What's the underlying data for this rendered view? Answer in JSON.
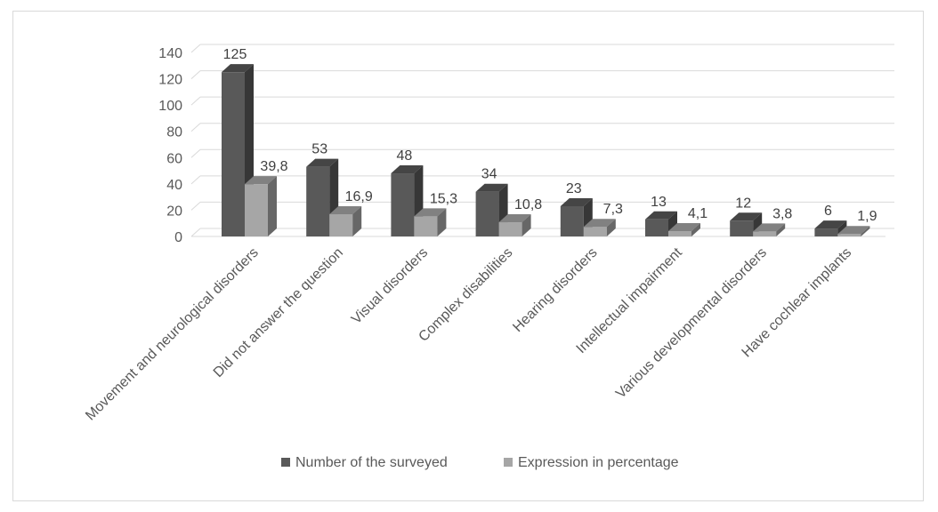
{
  "chart_data": {
    "type": "bar",
    "categories": [
      "Movement and neurological disorders",
      "Did not answer the question",
      "Visual disorders",
      "Complex disabilities",
      "Hearing disorders",
      "Intellectual impairment",
      "Various developmental disorders",
      "Have cochlear implants"
    ],
    "series": [
      {
        "name": "Number of the surveyed",
        "values": [
          125,
          53,
          48,
          34,
          23,
          13,
          12,
          6
        ],
        "labels": [
          "125",
          "53",
          "48",
          "34",
          "23",
          "13",
          "12",
          "6"
        ],
        "color": "#595959"
      },
      {
        "name": "Expression in percentage",
        "values": [
          39.8,
          16.9,
          15.3,
          10.8,
          7.3,
          4.1,
          3.8,
          1.9
        ],
        "labels": [
          "39,8",
          "16,9",
          "15,3",
          "10,8",
          "7,3",
          "4,1",
          "3,8",
          "1,9"
        ],
        "color": "#a6a6a6"
      }
    ],
    "yticks": [
      "0",
      "20",
      "40",
      "60",
      "80",
      "100",
      "120",
      "140"
    ],
    "ylim": [
      0,
      140
    ],
    "grid": true,
    "legend_position": "bottom",
    "style": "3d-column"
  }
}
